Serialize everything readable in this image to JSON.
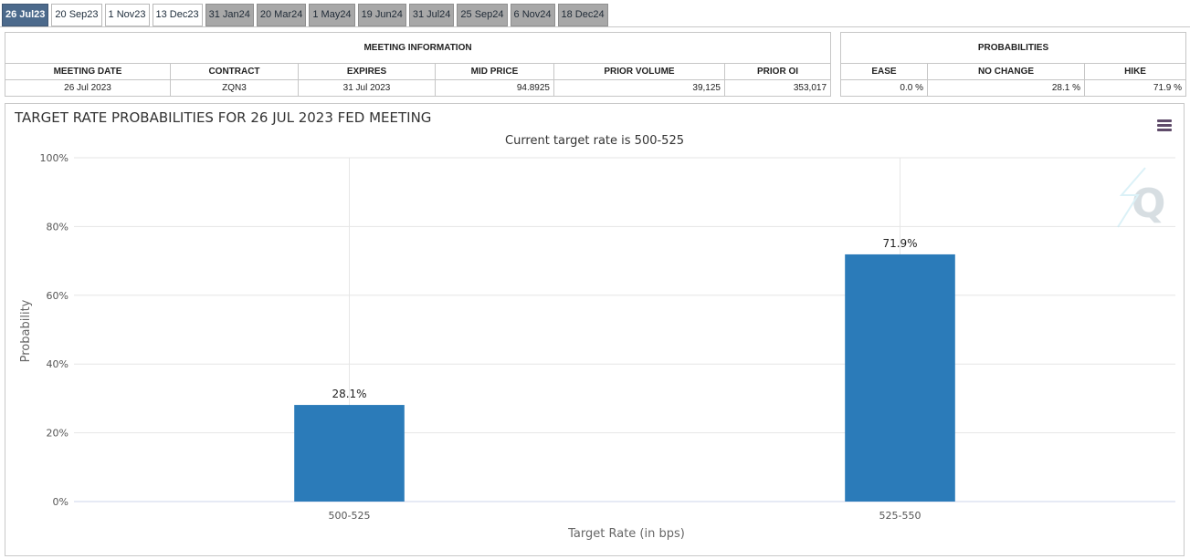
{
  "tabs": [
    {
      "label": "26 Jul23",
      "state": "active"
    },
    {
      "label": "20 Sep23",
      "state": "white"
    },
    {
      "label": "1 Nov23",
      "state": "white"
    },
    {
      "label": "13 Dec23",
      "state": "white"
    },
    {
      "label": "31 Jan24",
      "state": "grey"
    },
    {
      "label": "20 Mar24",
      "state": "grey"
    },
    {
      "label": "1 May24",
      "state": "grey"
    },
    {
      "label": "19 Jun24",
      "state": "grey"
    },
    {
      "label": "31 Jul24",
      "state": "grey"
    },
    {
      "label": "25 Sep24",
      "state": "grey"
    },
    {
      "label": "6 Nov24",
      "state": "grey"
    },
    {
      "label": "18 Dec24",
      "state": "grey"
    }
  ],
  "meeting_info": {
    "title": "MEETING INFORMATION",
    "headers": [
      "MEETING DATE",
      "CONTRACT",
      "EXPIRES",
      "MID PRICE",
      "PRIOR VOLUME",
      "PRIOR OI"
    ],
    "row": [
      "26 Jul 2023",
      "ZQN3",
      "31 Jul 2023",
      "94.8925",
      "39,125",
      "353,017"
    ]
  },
  "probabilities": {
    "title": "PROBABILITIES",
    "headers": [
      "EASE",
      "NO CHANGE",
      "HIKE"
    ],
    "row": [
      "0.0 %",
      "28.1 %",
      "71.9 %"
    ]
  },
  "colors": {
    "bar": "#2b7bb9",
    "active_tab": "#4c6a8c",
    "menu_icon": "#5f4b6a"
  },
  "icons": {
    "menu": "hamburger-menu-icon",
    "watermark": "q-logo-watermark"
  },
  "chart_data": {
    "type": "bar",
    "title": "TARGET RATE PROBABILITIES FOR 26 JUL 2023 FED MEETING",
    "subtitle": "Current target rate is 500-525",
    "categories": [
      "500-525",
      "525-550"
    ],
    "values": [
      28.1,
      71.9
    ],
    "data_labels": [
      "28.1%",
      "71.9%"
    ],
    "xlabel": "Target Rate (in bps)",
    "ylabel": "Probability",
    "ylim": [
      0,
      100
    ],
    "yticks": [
      "0%",
      "20%",
      "40%",
      "60%",
      "80%",
      "100%"
    ],
    "grid": true,
    "legend": "none"
  }
}
